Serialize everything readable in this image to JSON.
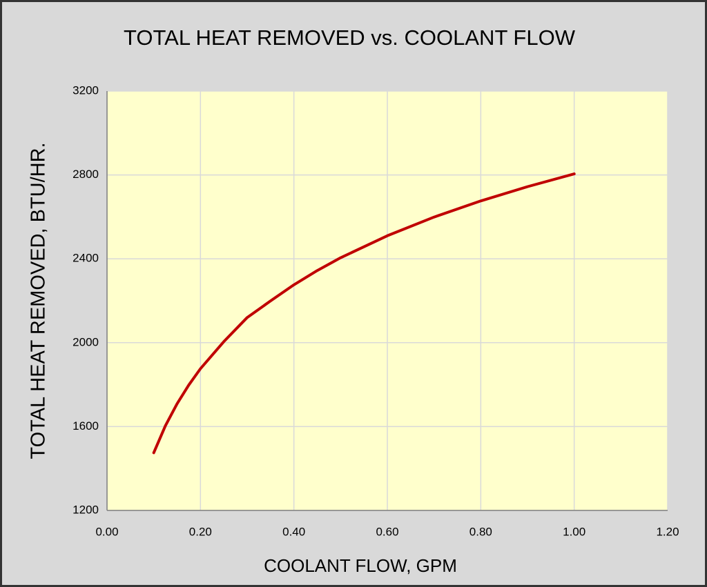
{
  "chart_data": {
    "type": "line",
    "title": "TOTAL HEAT REMOVED vs. COOLANT FLOW",
    "x_label": "COOLANT FLOW, GPM",
    "y_label": "TOTAL HEAT REMOVED, BTU/HR.",
    "x": [
      0.1,
      0.125,
      0.15,
      0.175,
      0.2,
      0.25,
      0.3,
      0.35,
      0.4,
      0.45,
      0.5,
      0.6,
      0.7,
      0.8,
      0.9,
      1.0
    ],
    "series": [
      {
        "color": "#c00000",
        "values": [
          1475,
          1604,
          1709,
          1798,
          1876,
          2005,
          2120,
          2199,
          2276,
          2344,
          2405,
          2510,
          2599,
          2676,
          2744,
          2805
        ]
      }
    ],
    "xlim": [
      0,
      1.2
    ],
    "xticks": [
      {
        "value": 0,
        "label": "0.00"
      },
      {
        "value": 0.2,
        "label": "0.20"
      },
      {
        "value": 0.4,
        "label": "0.40"
      },
      {
        "value": 0.6,
        "label": "0.60"
      },
      {
        "value": 0.8,
        "label": "0.80"
      },
      {
        "value": 1.0,
        "label": "1.00"
      },
      {
        "value": 1.2,
        "label": "1.20"
      }
    ],
    "ylim": [
      1200,
      3200
    ],
    "yticks": [
      1200,
      1600,
      2000,
      2400,
      2800,
      3200
    ],
    "grid": true,
    "plot_background": "#ffffcc"
  }
}
